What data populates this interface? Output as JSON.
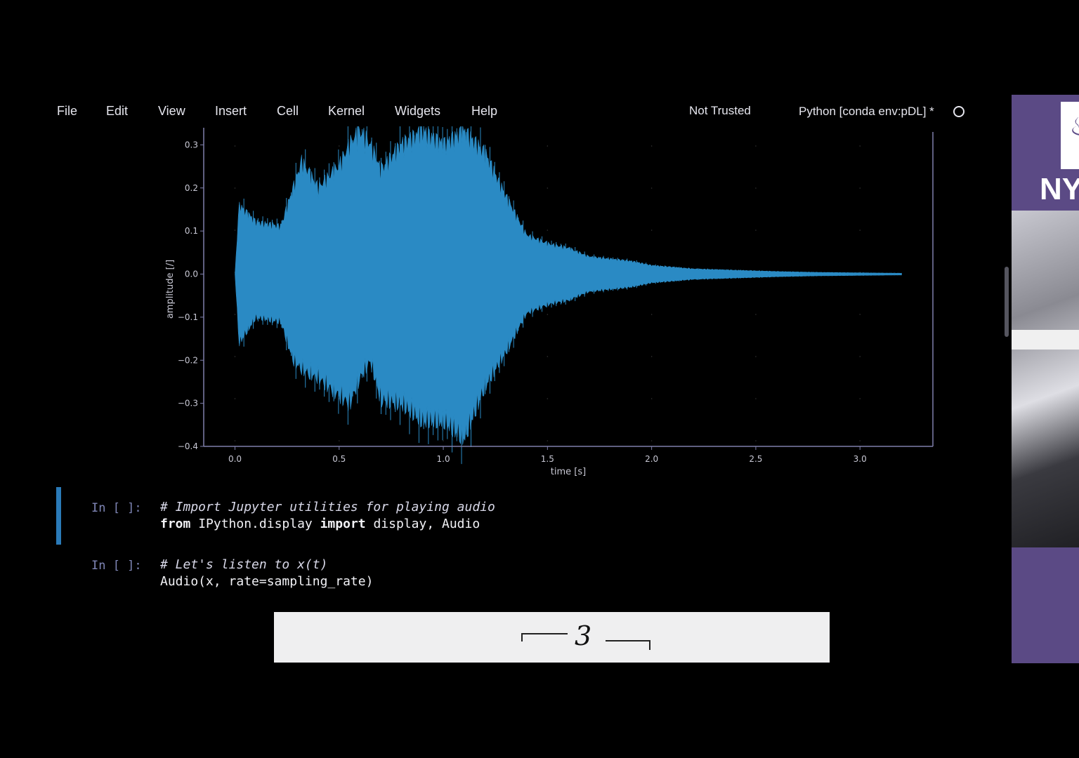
{
  "menu": {
    "items": [
      {
        "label": "File",
        "name": "menu-file"
      },
      {
        "label": "Edit",
        "name": "menu-edit"
      },
      {
        "label": "View",
        "name": "menu-view"
      },
      {
        "label": "Insert",
        "name": "menu-insert"
      },
      {
        "label": "Cell",
        "name": "menu-cell"
      },
      {
        "label": "Kernel",
        "name": "menu-kernel"
      },
      {
        "label": "Widgets",
        "name": "menu-widgets"
      },
      {
        "label": "Help",
        "name": "menu-help"
      }
    ],
    "trust_status": "Not Trusted",
    "kernel_name": "Python [conda env:pDL] *"
  },
  "cells": [
    {
      "prompt": "In [ ]:",
      "comment": "# Import Jupyter utilities for playing audio",
      "code": {
        "kw1": "from",
        "mod": " IPython.display ",
        "kw2": "import",
        "rest": " display, Audio"
      }
    },
    {
      "prompt": "In [ ]:",
      "comment": "# Let's listen to x(t)",
      "code_plain": "Audio(x, rate=sampling_rate)"
    }
  ],
  "slide": {
    "brace_label": "3"
  },
  "sidebar": {
    "logo_text": "NY"
  },
  "colors": {
    "waveform": "#2a8ac4",
    "axis": "#7f7faa",
    "background": "#000000"
  },
  "chart_data": {
    "type": "line",
    "title": "",
    "xlabel": "time [s]",
    "ylabel": "amplitude [/]",
    "xlim": [
      -0.15,
      3.35
    ],
    "ylim": [
      -0.4,
      0.33
    ],
    "xticks": [
      "0.0",
      "0.5",
      "1.0",
      "1.5",
      "2.0",
      "2.5",
      "3.0"
    ],
    "yticks": [
      "0.3",
      "0.2",
      "0.1",
      "0.0",
      "-0.1",
      "-0.2",
      "-0.3",
      "-0.4"
    ],
    "envelope": {
      "t": [
        0.0,
        0.02,
        0.1,
        0.22,
        0.28,
        0.32,
        0.4,
        0.5,
        0.55,
        0.6,
        0.65,
        0.7,
        0.8,
        0.9,
        1.0,
        1.1,
        1.2,
        1.3,
        1.4,
        1.5,
        1.6,
        1.7,
        1.8,
        1.9,
        2.0,
        2.2,
        2.4,
        2.6,
        2.8,
        3.0,
        3.2
      ],
      "upper": [
        0.0,
        0.16,
        0.12,
        0.11,
        0.2,
        0.26,
        0.2,
        0.25,
        0.3,
        0.33,
        0.3,
        0.24,
        0.3,
        0.33,
        0.3,
        0.33,
        0.28,
        0.18,
        0.09,
        0.07,
        0.06,
        0.04,
        0.035,
        0.03,
        0.02,
        0.012,
        0.009,
        0.006,
        0.004,
        0.003,
        0.002
      ],
      "lower": [
        0.0,
        -0.16,
        -0.1,
        -0.11,
        -0.2,
        -0.22,
        -0.24,
        -0.28,
        -0.3,
        -0.24,
        -0.2,
        -0.29,
        -0.3,
        -0.34,
        -0.34,
        -0.38,
        -0.26,
        -0.18,
        -0.09,
        -0.07,
        -0.06,
        -0.04,
        -0.035,
        -0.03,
        -0.02,
        -0.012,
        -0.009,
        -0.006,
        -0.004,
        -0.003,
        -0.002
      ]
    }
  }
}
